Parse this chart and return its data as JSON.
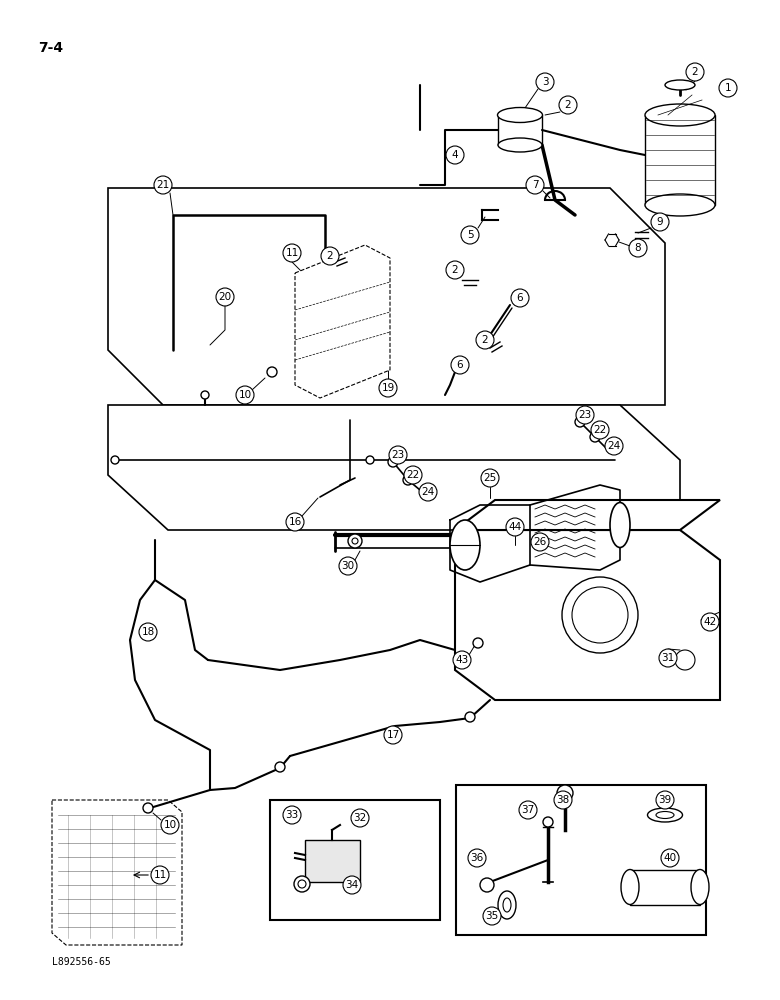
{
  "title": "7-4",
  "watermark": "L892556-65",
  "background_color": "#ffffff",
  "figsize": [
    7.8,
    10.0
  ],
  "dpi": 100,
  "line_color": "#000000",
  "font_size_title": 10,
  "font_size_label": 7.5,
  "font_size_watermark": 7
}
